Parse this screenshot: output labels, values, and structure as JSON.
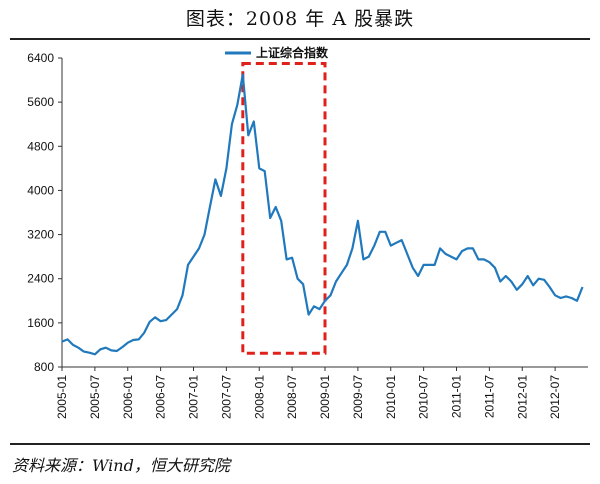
{
  "title": "图表：2008 年 A 股暴跌",
  "source": "资料来源：Wind，恒大研究院",
  "colors": {
    "line": "#2179bd",
    "highlight": "#e0201b",
    "axis": "#333333"
  },
  "chart_data": {
    "type": "line",
    "series": [
      {
        "name": "上证综合指数",
        "points": [
          [
            "2005-01",
            1260
          ],
          [
            "2005-02",
            1300
          ],
          [
            "2005-03",
            1200
          ],
          [
            "2005-04",
            1150
          ],
          [
            "2005-05",
            1080
          ],
          [
            "2005-06",
            1060
          ],
          [
            "2005-07",
            1030
          ],
          [
            "2005-08",
            1120
          ],
          [
            "2005-09",
            1150
          ],
          [
            "2005-10",
            1100
          ],
          [
            "2005-11",
            1090
          ],
          [
            "2005-12",
            1160
          ],
          [
            "2006-01",
            1240
          ],
          [
            "2006-02",
            1290
          ],
          [
            "2006-03",
            1300
          ],
          [
            "2006-04",
            1420
          ],
          [
            "2006-05",
            1620
          ],
          [
            "2006-06",
            1700
          ],
          [
            "2006-07",
            1630
          ],
          [
            "2006-08",
            1650
          ],
          [
            "2006-09",
            1750
          ],
          [
            "2006-10",
            1850
          ],
          [
            "2006-11",
            2100
          ],
          [
            "2006-12",
            2650
          ],
          [
            "2007-01",
            2800
          ],
          [
            "2007-02",
            2950
          ],
          [
            "2007-03",
            3200
          ],
          [
            "2007-04",
            3700
          ],
          [
            "2007-05",
            4200
          ],
          [
            "2007-06",
            3900
          ],
          [
            "2007-07",
            4400
          ],
          [
            "2007-08",
            5200
          ],
          [
            "2007-09",
            5550
          ],
          [
            "2007-10",
            6100
          ],
          [
            "2007-11",
            5000
          ],
          [
            "2007-12",
            5250
          ],
          [
            "2008-01",
            4400
          ],
          [
            "2008-02",
            4350
          ],
          [
            "2008-03",
            3500
          ],
          [
            "2008-04",
            3700
          ],
          [
            "2008-05",
            3450
          ],
          [
            "2008-06",
            2750
          ],
          [
            "2008-07",
            2780
          ],
          [
            "2008-08",
            2400
          ],
          [
            "2008-09",
            2300
          ],
          [
            "2008-10",
            1750
          ],
          [
            "2008-11",
            1900
          ],
          [
            "2008-12",
            1850
          ],
          [
            "2009-01",
            2000
          ],
          [
            "2009-02",
            2100
          ],
          [
            "2009-03",
            2350
          ],
          [
            "2009-04",
            2500
          ],
          [
            "2009-05",
            2650
          ],
          [
            "2009-06",
            2950
          ],
          [
            "2009-07",
            3450
          ],
          [
            "2009-08",
            2750
          ],
          [
            "2009-09",
            2800
          ],
          [
            "2009-10",
            3000
          ],
          [
            "2009-11",
            3250
          ],
          [
            "2009-12",
            3250
          ],
          [
            "2010-01",
            3000
          ],
          [
            "2010-02",
            3050
          ],
          [
            "2010-03",
            3100
          ],
          [
            "2010-04",
            2850
          ],
          [
            "2010-05",
            2600
          ],
          [
            "2010-06",
            2450
          ],
          [
            "2010-07",
            2650
          ],
          [
            "2010-08",
            2650
          ],
          [
            "2010-09",
            2650
          ],
          [
            "2010-10",
            2950
          ],
          [
            "2010-11",
            2850
          ],
          [
            "2010-12",
            2800
          ],
          [
            "2011-01",
            2750
          ],
          [
            "2011-02",
            2900
          ],
          [
            "2011-03",
            2950
          ],
          [
            "2011-04",
            2950
          ],
          [
            "2011-05",
            2750
          ],
          [
            "2011-06",
            2750
          ],
          [
            "2011-07",
            2700
          ],
          [
            "2011-08",
            2600
          ],
          [
            "2011-09",
            2350
          ],
          [
            "2011-10",
            2450
          ],
          [
            "2011-11",
            2350
          ],
          [
            "2011-12",
            2200
          ],
          [
            "2012-01",
            2300
          ],
          [
            "2012-02",
            2450
          ],
          [
            "2012-03",
            2280
          ],
          [
            "2012-04",
            2400
          ],
          [
            "2012-05",
            2380
          ],
          [
            "2012-06",
            2250
          ],
          [
            "2012-07",
            2100
          ],
          [
            "2012-08",
            2050
          ],
          [
            "2012-09",
            2080
          ],
          [
            "2012-10",
            2050
          ],
          [
            "2012-11",
            2000
          ],
          [
            "2012-12",
            2250
          ]
        ]
      }
    ],
    "xticks": [
      "2005-01",
      "2005-07",
      "2006-01",
      "2006-07",
      "2007-01",
      "2007-07",
      "2008-01",
      "2008-07",
      "2009-01",
      "2009-07",
      "2010-01",
      "2010-07",
      "2011-01",
      "2011-07",
      "2012-01",
      "2012-07"
    ],
    "yticks": [
      800,
      1600,
      2400,
      3200,
      4000,
      4800,
      5600,
      6400
    ],
    "ylim": [
      800,
      6400
    ],
    "xrange": [
      "2005-01",
      "2012-12"
    ],
    "highlight_range": {
      "x": [
        "2007-10",
        "2009-01"
      ],
      "y": [
        1050,
        6300
      ]
    },
    "legend_position": "top-center",
    "grid": false
  }
}
